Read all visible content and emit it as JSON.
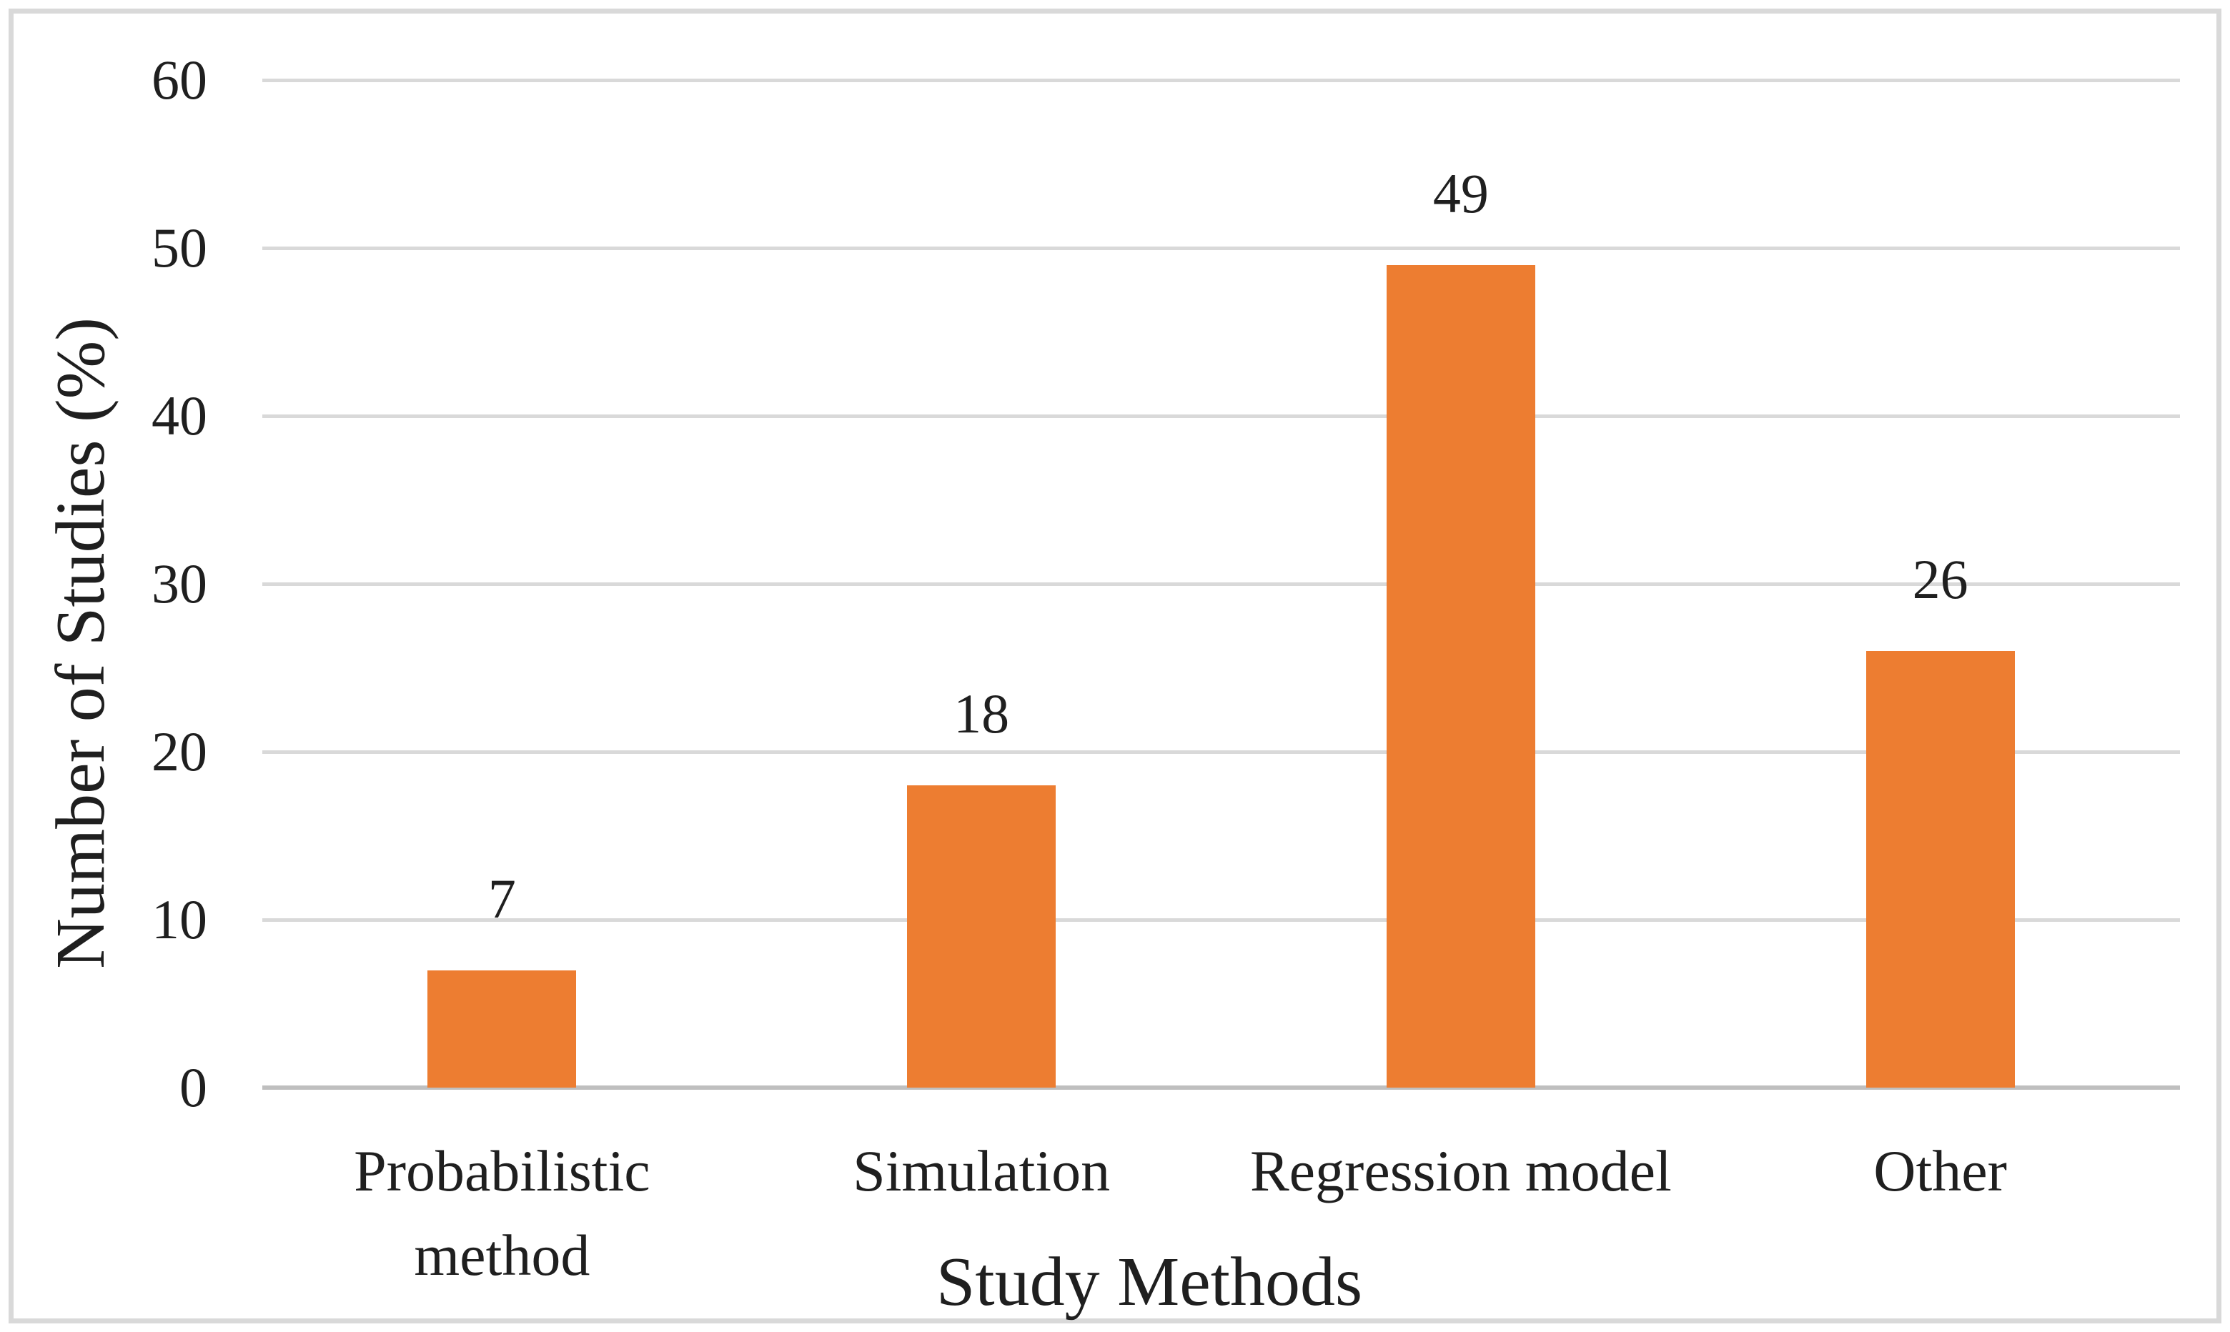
{
  "chart_data": {
    "type": "bar",
    "title": "",
    "categories": [
      "Probabilistic method",
      "Simulation",
      "Regression model",
      "Other"
    ],
    "values": [
      7,
      18,
      49,
      26
    ],
    "data_labels": [
      "7",
      "18",
      "49",
      "26"
    ],
    "xlabel": "Study Methods",
    "ylabel": "Number of Studies (%)",
    "ylim": [
      0,
      60
    ],
    "yticks": [
      0,
      10,
      20,
      30,
      40,
      50,
      60
    ],
    "grid": "horizontal",
    "legend_position": "none",
    "bar_color": "#ED7D31",
    "gridline_color": "#D9D9D9",
    "axis_line_color": "#BFBFBF",
    "text_color": "#1F1F1F",
    "frame_color": "#D9D9D9",
    "background_color": "#FFFFFF"
  }
}
